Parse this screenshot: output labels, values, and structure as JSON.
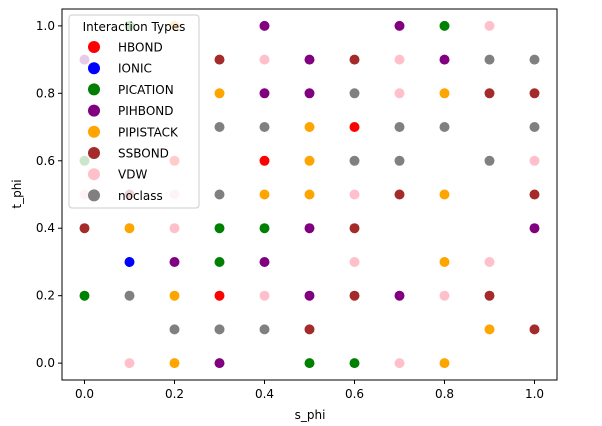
{
  "chart_data": {
    "type": "scatter",
    "title": "",
    "xlabel": "s_phi",
    "ylabel": "t_phi",
    "xlim": [
      -0.05,
      1.05
    ],
    "ylim": [
      -0.05,
      1.05
    ],
    "x_ticks": [
      0.0,
      0.2,
      0.4,
      0.6,
      0.8,
      1.0
    ],
    "y_ticks": [
      0.0,
      0.2,
      0.4,
      0.6,
      0.8,
      1.0
    ],
    "x_tick_labels": [
      "0.0",
      "0.2",
      "0.4",
      "0.6",
      "0.8",
      "1.0"
    ],
    "y_tick_labels": [
      "0.0",
      "0.2",
      "0.4",
      "0.6",
      "0.8",
      "1.0"
    ],
    "grid": false,
    "legend": {
      "title": "Interaction Types",
      "placement": "top-left"
    },
    "series": [
      {
        "name": "HBOND",
        "color": "#ff0000",
        "points": [
          [
            0.2,
            0.6
          ],
          [
            0.3,
            0.2
          ],
          [
            0.4,
            0.6
          ],
          [
            0.6,
            0.7
          ]
        ]
      },
      {
        "name": "IONIC",
        "color": "#0000ff",
        "points": [
          [
            0.1,
            0.3
          ]
        ]
      },
      {
        "name": "PICATION",
        "color": "#008000",
        "points": [
          [
            0.0,
            0.2
          ],
          [
            0.0,
            0.6
          ],
          [
            0.1,
            1.0
          ],
          [
            0.3,
            0.4
          ],
          [
            0.3,
            0.3
          ],
          [
            0.4,
            0.4
          ],
          [
            0.5,
            0.0
          ],
          [
            0.6,
            0.0
          ],
          [
            0.8,
            1.0
          ]
        ]
      },
      {
        "name": "PIHBOND",
        "color": "#800080",
        "points": [
          [
            0.0,
            0.9
          ],
          [
            0.2,
            0.3
          ],
          [
            0.3,
            0.0
          ],
          [
            0.4,
            1.0
          ],
          [
            0.4,
            0.8
          ],
          [
            0.4,
            0.3
          ],
          [
            0.5,
            0.9
          ],
          [
            0.5,
            0.8
          ],
          [
            0.5,
            0.4
          ],
          [
            0.5,
            0.2
          ],
          [
            0.7,
            1.0
          ],
          [
            0.7,
            0.2
          ],
          [
            0.8,
            0.9
          ],
          [
            1.0,
            0.4
          ]
        ]
      },
      {
        "name": "PIPISTACK",
        "color": "#ffa500",
        "points": [
          [
            0.1,
            0.4
          ],
          [
            0.2,
            1.0
          ],
          [
            0.2,
            0.2
          ],
          [
            0.2,
            0.0
          ],
          [
            0.3,
            0.8
          ],
          [
            0.4,
            0.5
          ],
          [
            0.5,
            0.7
          ],
          [
            0.5,
            0.6
          ],
          [
            0.5,
            0.5
          ],
          [
            0.8,
            0.8
          ],
          [
            0.8,
            0.5
          ],
          [
            0.8,
            0.3
          ],
          [
            0.8,
            0.0
          ],
          [
            0.9,
            0.1
          ]
        ]
      },
      {
        "name": "SSBOND",
        "color": "#a52a2a",
        "points": [
          [
            0.0,
            0.4
          ],
          [
            0.1,
            0.5
          ],
          [
            0.3,
            0.9
          ],
          [
            0.5,
            0.1
          ],
          [
            0.6,
            0.9
          ],
          [
            0.6,
            0.4
          ],
          [
            0.6,
            0.2
          ],
          [
            0.7,
            0.5
          ],
          [
            0.9,
            0.8
          ],
          [
            0.9,
            0.2
          ],
          [
            1.0,
            0.8
          ],
          [
            1.0,
            0.5
          ],
          [
            1.0,
            0.1
          ]
        ]
      },
      {
        "name": "VDW",
        "color": "#ffc0cb",
        "points": [
          [
            0.0,
            0.5
          ],
          [
            0.1,
            0.0
          ],
          [
            0.2,
            0.4
          ],
          [
            0.2,
            0.5
          ],
          [
            0.3,
            0.1
          ],
          [
            0.4,
            0.9
          ],
          [
            0.4,
            0.2
          ],
          [
            0.6,
            0.5
          ],
          [
            0.6,
            0.3
          ],
          [
            0.7,
            0.9
          ],
          [
            0.7,
            0.8
          ],
          [
            0.7,
            0.0
          ],
          [
            0.8,
            0.2
          ],
          [
            0.9,
            1.0
          ],
          [
            0.9,
            0.3
          ],
          [
            1.0,
            0.6
          ]
        ]
      },
      {
        "name": "noclass",
        "color": "#808080",
        "points": [
          [
            0.1,
            0.2
          ],
          [
            0.2,
            0.1
          ],
          [
            0.3,
            0.7
          ],
          [
            0.3,
            0.5
          ],
          [
            0.3,
            0.1
          ],
          [
            0.4,
            0.7
          ],
          [
            0.4,
            0.1
          ],
          [
            0.6,
            0.8
          ],
          [
            0.6,
            0.6
          ],
          [
            0.7,
            0.7
          ],
          [
            0.7,
            0.6
          ],
          [
            0.8,
            0.7
          ],
          [
            0.9,
            0.9
          ],
          [
            0.9,
            0.6
          ],
          [
            1.0,
            0.9
          ],
          [
            1.0,
            0.7
          ]
        ]
      }
    ]
  }
}
